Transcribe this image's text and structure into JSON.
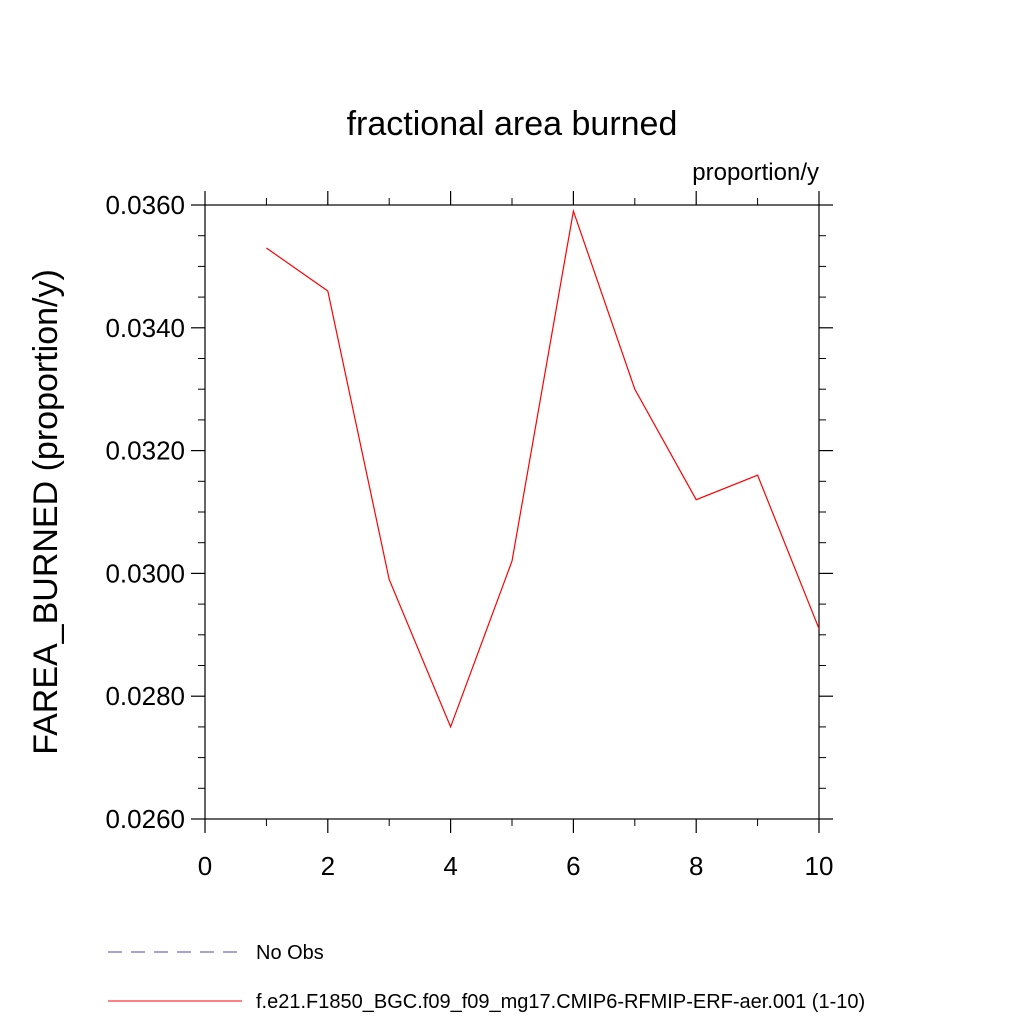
{
  "chart_data": {
    "type": "line",
    "title": "fractional area burned",
    "units_label": "proportion/y",
    "ylabel": "FAREA_BURNED  (proportion/y)",
    "xlabel": "",
    "xlim": [
      0,
      10
    ],
    "ylim": [
      0.026,
      0.036
    ],
    "xticks": [
      "0",
      "2",
      "4",
      "6",
      "8",
      "10"
    ],
    "yticks": [
      "0.0260",
      "0.0280",
      "0.0300",
      "0.0320",
      "0.0340",
      "0.0360"
    ],
    "grid": false,
    "legend_position": "bottom",
    "series": [
      {
        "name": "No Obs",
        "color": "#5544aa",
        "dash": "dashed",
        "x": [],
        "y": []
      },
      {
        "name": "f.e21.F1850_BGC.f09_f09_mg17.CMIP6-RFMIP-ERF-aer.001 (1-10)",
        "color": "#ff0000",
        "dash": "solid",
        "x": [
          1,
          2,
          3,
          4,
          5,
          6,
          7,
          8,
          9,
          10
        ],
        "y": [
          0.0353,
          0.0346,
          0.0299,
          0.0275,
          0.0302,
          0.0359,
          0.033,
          0.0312,
          0.0316,
          0.0291
        ]
      }
    ]
  }
}
